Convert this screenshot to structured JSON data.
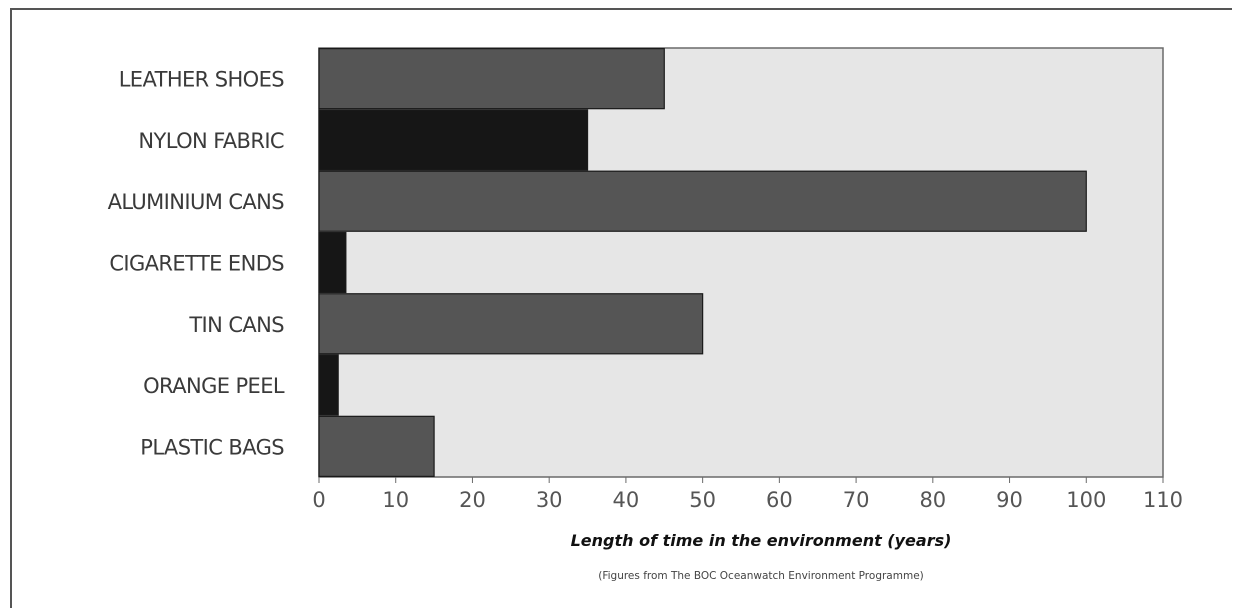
{
  "chart_data": {
    "type": "bar",
    "orientation": "horizontal",
    "categories": [
      "LEATHER SHOES",
      "NYLON FABRIC",
      "ALUMINIUM CANS",
      "CIGARETTE ENDS",
      "TIN CANS",
      "ORANGE PEEL",
      "PLASTIC BAGS"
    ],
    "values": [
      45,
      35,
      100,
      3.5,
      50,
      2.5,
      15
    ],
    "bar_colors": [
      "#555555",
      "#161616",
      "#555555",
      "#161616",
      "#555555",
      "#161616",
      "#555555"
    ],
    "xlim": [
      0,
      110
    ],
    "xticks": [
      0,
      10,
      20,
      30,
      40,
      50,
      60,
      70,
      80,
      90,
      100,
      110
    ],
    "xlabel": "Length of time in the environment (years)",
    "note": "(Figures from The BOC Oceanwatch Environment Programme)",
    "plot_background": "#e6e6e6",
    "grid": false
  }
}
